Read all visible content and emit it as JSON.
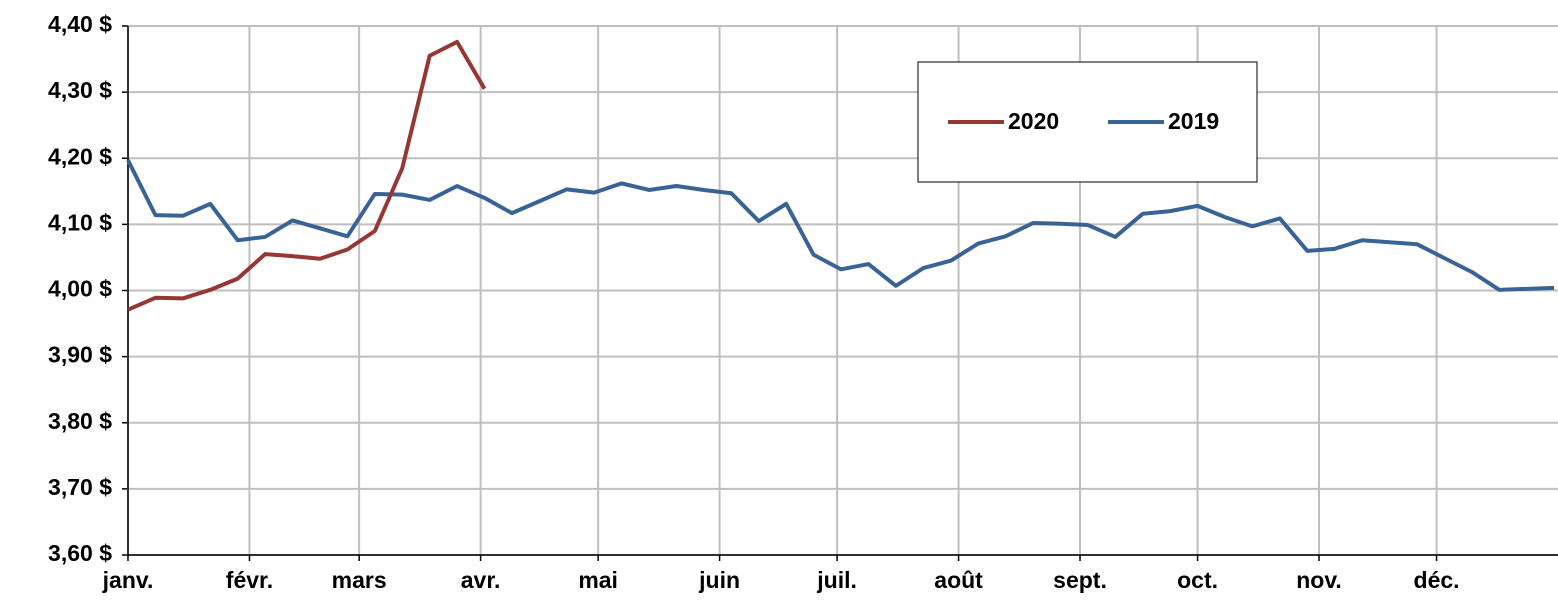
{
  "chart_data": {
    "type": "line",
    "xlim": [
      0,
      365
    ],
    "xticks": [
      {
        "value": 0,
        "label": "janv."
      },
      {
        "value": 31,
        "label": "févr."
      },
      {
        "value": 59,
        "label": "mars"
      },
      {
        "value": 90,
        "label": "avr."
      },
      {
        "value": 120,
        "label": "mai"
      },
      {
        "value": 151,
        "label": "juin"
      },
      {
        "value": 181,
        "label": "juil."
      },
      {
        "value": 212,
        "label": "août"
      },
      {
        "value": 243,
        "label": "sept."
      },
      {
        "value": 273,
        "label": "oct."
      },
      {
        "value": 304,
        "label": "nov."
      },
      {
        "value": 334,
        "label": "déc."
      }
    ],
    "ylim": [
      3.6,
      4.4
    ],
    "yticks": [
      {
        "value": 3.6,
        "label": "3,60 $"
      },
      {
        "value": 3.7,
        "label": "3,70 $"
      },
      {
        "value": 3.8,
        "label": "3,80 $"
      },
      {
        "value": 3.9,
        "label": "3,90 $"
      },
      {
        "value": 4.0,
        "label": "4,00 $"
      },
      {
        "value": 4.1,
        "label": "4,10 $"
      },
      {
        "value": 4.2,
        "label": "4,20 $"
      },
      {
        "value": 4.3,
        "label": "4,30 $"
      },
      {
        "value": 4.4,
        "label": "4,40 $"
      }
    ],
    "grid": true,
    "series": [
      {
        "name": "2020",
        "color": "#953735",
        "x": [
          0,
          7,
          14,
          21,
          28,
          35,
          42,
          49,
          56,
          63,
          70,
          77,
          84,
          91
        ],
        "values": [
          3.971,
          3.989,
          3.988,
          4.001,
          4.018,
          4.055,
          4.052,
          4.048,
          4.062,
          4.09,
          4.185,
          4.355,
          4.376,
          4.305
        ]
      },
      {
        "name": "2019",
        "color": "#3a6395",
        "x": [
          0,
          7,
          14,
          21,
          28,
          35,
          42,
          49,
          56,
          63,
          70,
          77,
          84,
          91,
          98,
          105,
          112,
          119,
          126,
          133,
          140,
          147,
          154,
          161,
          168,
          175,
          182,
          189,
          196,
          203,
          210,
          217,
          224,
          231,
          238,
          245,
          252,
          259,
          266,
          273,
          280,
          287,
          294,
          301,
          308,
          315,
          322,
          329,
          336,
          343,
          350,
          364
        ],
        "values": [
          4.197,
          4.114,
          4.113,
          4.131,
          4.076,
          4.081,
          4.106,
          4.094,
          4.082,
          4.146,
          4.145,
          4.137,
          4.158,
          4.14,
          4.117,
          4.135,
          4.153,
          4.148,
          4.162,
          4.152,
          4.158,
          4.152,
          4.147,
          4.105,
          4.131,
          4.054,
          4.032,
          4.04,
          4.007,
          4.034,
          4.045,
          4.071,
          4.082,
          4.102,
          4.101,
          4.099,
          4.081,
          4.116,
          4.12,
          4.128,
          4.111,
          4.097,
          4.109,
          4.06,
          4.063,
          4.076,
          4.073,
          4.07,
          4.049,
          4.028,
          4.001,
          4.004
        ]
      }
    ]
  }
}
